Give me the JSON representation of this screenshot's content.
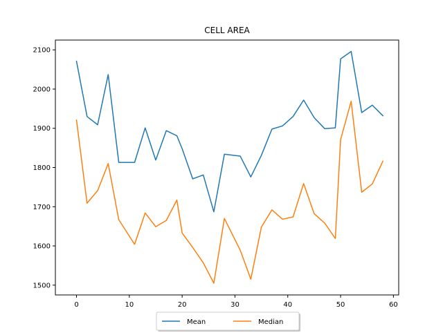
{
  "chart_data": {
    "type": "line",
    "title": "CELL AREA",
    "xlabel": "",
    "ylabel": "",
    "xlim": [
      -4,
      61
    ],
    "ylim": [
      1475,
      2125
    ],
    "xticks": [
      0,
      10,
      20,
      30,
      40,
      50,
      60
    ],
    "yticks": [
      1500,
      1600,
      1700,
      1800,
      1900,
      2000,
      2100
    ],
    "grid": false,
    "legend_position": "bottom-center",
    "series": [
      {
        "name": "Mean",
        "color": "#1f77b4",
        "points": [
          [
            0,
            2071
          ],
          [
            2,
            1930
          ],
          [
            4,
            1909
          ],
          [
            6,
            2037
          ],
          [
            8,
            1813
          ],
          [
            11,
            1813
          ],
          [
            13,
            1901
          ],
          [
            15,
            1819
          ],
          [
            17,
            1894
          ],
          [
            19,
            1881
          ],
          [
            20,
            1848
          ],
          [
            22,
            1771
          ],
          [
            24,
            1781
          ],
          [
            26,
            1687
          ],
          [
            28,
            1834
          ],
          [
            31,
            1829
          ],
          [
            33,
            1776
          ],
          [
            35,
            1831
          ],
          [
            37,
            1898
          ],
          [
            39,
            1906
          ],
          [
            41,
            1930
          ],
          [
            43,
            1972
          ],
          [
            45,
            1927
          ],
          [
            47,
            1899
          ],
          [
            49,
            1901
          ],
          [
            50,
            2077
          ],
          [
            52,
            2096
          ],
          [
            54,
            1940
          ],
          [
            56,
            1959
          ],
          [
            58,
            1932
          ]
        ]
      },
      {
        "name": "Median",
        "color": "#ff7f0e",
        "points": [
          [
            0,
            1921
          ],
          [
            2,
            1709
          ],
          [
            4,
            1741
          ],
          [
            6,
            1810
          ],
          [
            8,
            1667
          ],
          [
            11,
            1604
          ],
          [
            13,
            1684
          ],
          [
            15,
            1649
          ],
          [
            17,
            1665
          ],
          [
            19,
            1717
          ],
          [
            20,
            1633
          ],
          [
            22,
            1596
          ],
          [
            24,
            1557
          ],
          [
            26,
            1505
          ],
          [
            28,
            1670
          ],
          [
            31,
            1589
          ],
          [
            33,
            1515
          ],
          [
            35,
            1648
          ],
          [
            37,
            1692
          ],
          [
            39,
            1668
          ],
          [
            41,
            1674
          ],
          [
            43,
            1759
          ],
          [
            45,
            1682
          ],
          [
            47,
            1658
          ],
          [
            49,
            1619
          ],
          [
            50,
            1871
          ],
          [
            52,
            1969
          ],
          [
            54,
            1737
          ],
          [
            56,
            1758
          ],
          [
            58,
            1816
          ]
        ]
      }
    ]
  }
}
